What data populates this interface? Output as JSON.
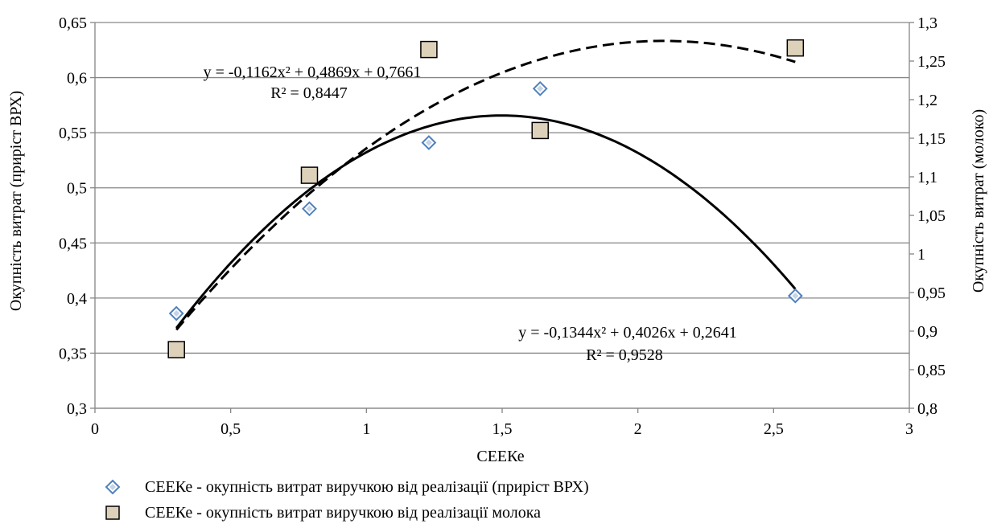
{
  "chart_data": {
    "type": "scatter",
    "xlabel": "СЕЕКе",
    "ylabel_left": "Окупність витрат (приріст ВРХ)",
    "ylabel_right": "Окупність витрат (молоко)",
    "xlim": [
      0,
      3
    ],
    "ylim_left": [
      0.3,
      0.65
    ],
    "ylim_right": [
      0.8,
      1.3
    ],
    "x_ticks": [
      "0",
      "0,5",
      "1",
      "1,5",
      "2",
      "2,5",
      "3"
    ],
    "y_left_ticks": [
      "0,3",
      "0,35",
      "0,4",
      "0,45",
      "0,5",
      "0,55",
      "0,6",
      "0,65"
    ],
    "y_right_ticks": [
      "0,8",
      "0,85",
      "0,9",
      "0,95",
      "1",
      "1,05",
      "1,1",
      "1,15",
      "1,2",
      "1,25",
      "1,3"
    ],
    "grid": "horizontal",
    "legend_position": "bottom",
    "series": [
      {
        "name": "СЕЕКе - окупність витрат виручкою від реалізації (приріст ВРХ)",
        "axis": "left",
        "marker": "diamond",
        "color": "#4f81bd",
        "x": [
          0.3,
          0.79,
          1.23,
          1.64,
          2.58
        ],
        "y": [
          0.386,
          0.481,
          0.541,
          0.59,
          0.402
        ],
        "trendline": {
          "a": -0.1344,
          "b": 0.4026,
          "c": 0.2641,
          "x_range": [
            0.3,
            2.58
          ],
          "style": "solid"
        },
        "equation": "y = -0,1344x² + 0,4026x + 0,2641",
        "r2": "R² = 0,9528"
      },
      {
        "name": "СЕЕКе - окупність витрат виручкою від реалізації молока",
        "axis": "right",
        "marker": "square",
        "color": "#ddd1b9",
        "x": [
          0.3,
          0.79,
          1.23,
          1.64,
          2.58
        ],
        "y": [
          0.876,
          1.102,
          1.265,
          1.16,
          1.267
        ],
        "trendline": {
          "a": -0.1162,
          "b": 0.4869,
          "c": 0.7661,
          "x_range": [
            0.3,
            2.58
          ],
          "style": "dashed"
        },
        "equation": "y = -0,1162x² + 0,4869x + 0,7661",
        "r2": "R² = 0,8447"
      }
    ]
  }
}
